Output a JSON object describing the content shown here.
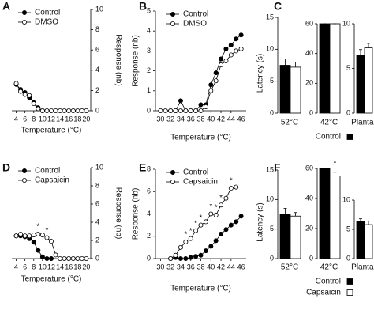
{
  "chart_data": [
    {
      "panel": "A",
      "type": "line",
      "xlabel": "Temperature (°C)",
      "ylabel": "Response (nb)",
      "y_axis_side": "right",
      "legend": "upper left",
      "x": [
        4,
        5,
        6,
        7,
        8,
        9,
        10,
        11,
        12,
        13,
        14,
        15,
        16,
        17,
        18,
        19,
        20
      ],
      "xlim": [
        3,
        21
      ],
      "xticks": [
        4,
        6,
        8,
        10,
        12,
        14,
        16,
        18,
        20
      ],
      "ylim": [
        0,
        10
      ],
      "yticks": [
        0,
        2,
        4,
        6,
        8,
        10
      ],
      "series": [
        {
          "name": "Control",
          "color": "#000000",
          "values": [
            2.6,
            2.1,
            1.8,
            1.3,
            0.8,
            0.3,
            0,
            null,
            null,
            null,
            null,
            null,
            null,
            null,
            null,
            null,
            null
          ]
        },
        {
          "name": "DMSO",
          "color": "#ffffff",
          "values": [
            2.7,
            1.9,
            1.6,
            1.5,
            0.7,
            0.2,
            0,
            0,
            0,
            0,
            0,
            0,
            0,
            0,
            0,
            0,
            0
          ]
        }
      ]
    },
    {
      "panel": "B",
      "type": "line",
      "xlabel": "Temperature (°C)",
      "ylabel": "Response (nb)",
      "y_axis_side": "left",
      "legend": "upper left",
      "x": [
        30,
        31,
        32,
        33,
        34,
        35,
        36,
        37,
        38,
        39,
        40,
        41,
        42,
        43,
        44,
        45,
        46
      ],
      "xlim": [
        29,
        47
      ],
      "xticks": [
        30,
        32,
        34,
        36,
        38,
        40,
        42,
        44,
        46
      ],
      "ylim": [
        0,
        5
      ],
      "yticks": [
        0,
        1,
        2,
        3,
        4,
        5
      ],
      "series": [
        {
          "name": "Control",
          "color": "#000000",
          "values": [
            null,
            null,
            0,
            0,
            0.5,
            0,
            0,
            0,
            0.3,
            0.3,
            1.3,
            1.9,
            2.6,
            3.1,
            3.3,
            3.6,
            3.8
          ]
        },
        {
          "name": "DMSO",
          "color": "#ffffff",
          "values": [
            0,
            0,
            0,
            0,
            0,
            0,
            0,
            0,
            0,
            0.2,
            1.0,
            1.5,
            2.3,
            2.5,
            2.8,
            3.0,
            3.1
          ]
        }
      ]
    },
    {
      "panel": "C",
      "type": "bar",
      "ylabel": "Latency (s)",
      "series": [
        {
          "name": "Control",
          "color": "#000000"
        },
        {
          "color": "#ffffff"
        }
      ],
      "groups": [
        {
          "category": "52°C",
          "ylim": [
            0,
            15
          ],
          "yticks": [
            0,
            5,
            10,
            15
          ],
          "values": [
            7.5,
            7.2
          ],
          "errors": [
            1.0,
            0.8
          ]
        },
        {
          "category": "42°C",
          "ylim": [
            0,
            60
          ],
          "yticks": [
            0,
            20,
            40,
            60
          ],
          "values": [
            60,
            60
          ],
          "errors": [
            0,
            0
          ]
        },
        {
          "category": "Plantar",
          "ylim": [
            0,
            10
          ],
          "yticks": [
            0,
            5,
            10
          ],
          "values": [
            6.5,
            7.3
          ],
          "errors": [
            0.6,
            0.5
          ]
        }
      ]
    },
    {
      "panel": "D",
      "type": "line",
      "xlabel": "Temperature (°C)",
      "ylabel": "Response (nb)",
      "y_axis_side": "right",
      "legend": "upper left",
      "x": [
        4,
        5,
        6,
        7,
        8,
        9,
        10,
        11,
        12,
        13,
        14,
        15,
        16,
        17,
        18,
        19,
        20
      ],
      "xlim": [
        3,
        21
      ],
      "xticks": [
        4,
        6,
        8,
        10,
        12,
        14,
        16,
        18,
        20
      ],
      "ylim": [
        0,
        10
      ],
      "yticks": [
        0,
        2,
        4,
        6,
        8,
        10
      ],
      "series": [
        {
          "name": "Control",
          "color": "#000000",
          "values": [
            2.5,
            2.5,
            2.4,
            2.2,
            1.8,
            0.9,
            0.2,
            0,
            0,
            null,
            null,
            null,
            null,
            null,
            null,
            null,
            null
          ]
        },
        {
          "name": "Capsaicin",
          "color": "#ffffff",
          "values": [
            2.5,
            2.7,
            2.5,
            2.5,
            2.6,
            2.7,
            2.6,
            2.3,
            1.9,
            0.4,
            0,
            0,
            0,
            0,
            0,
            0,
            0
          ]
        }
      ],
      "annotations": [
        {
          "x": 9,
          "label": "*"
        },
        {
          "x": 11,
          "label": "*"
        }
      ]
    },
    {
      "panel": "E",
      "type": "line",
      "xlabel": "Temperature (°C)",
      "ylabel": "Response (nb)",
      "y_axis_side": "left",
      "legend": "upper left",
      "x": [
        30,
        31,
        32,
        33,
        34,
        35,
        36,
        37,
        38,
        39,
        40,
        41,
        42,
        43,
        44,
        45,
        46
      ],
      "xlim": [
        29,
        47
      ],
      "xticks": [
        30,
        32,
        34,
        36,
        38,
        40,
        42,
        44,
        46
      ],
      "ylim": [
        0,
        8
      ],
      "yticks": [
        0,
        2,
        4,
        6,
        8
      ],
      "series": [
        {
          "name": "Control",
          "color": "#000000",
          "values": [
            null,
            null,
            0,
            0.1,
            0,
            0,
            0.1,
            0.2,
            0.3,
            0.7,
            1.1,
            1.6,
            2.2,
            2.6,
            3.0,
            3.3,
            3.8
          ]
        },
        {
          "name": "Capsaicin",
          "color": "#ffffff",
          "values": [
            null,
            null,
            0,
            0.3,
            1.0,
            1.5,
            1.8,
            2.5,
            3.0,
            3.3,
            4.0,
            3.9,
            4.8,
            5.4,
            6.3,
            6.4,
            null
          ]
        }
      ],
      "annotations": [
        {
          "x": 35,
          "label": "*"
        },
        {
          "x": 36,
          "label": "*"
        },
        {
          "x": 37,
          "label": "*"
        },
        {
          "x": 38,
          "label": "*"
        },
        {
          "x": 40,
          "label": "*"
        },
        {
          "x": 41,
          "label": "*"
        },
        {
          "x": 42,
          "label": "*"
        },
        {
          "x": 44,
          "label": "*"
        }
      ]
    },
    {
      "panel": "F",
      "type": "bar",
      "ylabel": "Latency (s)",
      "series": [
        {
          "name": "Control",
          "color": "#000000"
        },
        {
          "name": "Capsaicin",
          "color": "#ffffff"
        }
      ],
      "groups": [
        {
          "category": "52°C",
          "ylim": [
            0,
            15
          ],
          "yticks": [
            0,
            5,
            10,
            15
          ],
          "values": [
            7.5,
            7.2
          ],
          "errors": [
            1.0,
            0.6
          ]
        },
        {
          "category": "42°C",
          "ylim": [
            0,
            60
          ],
          "yticks": [
            0,
            20,
            40,
            60
          ],
          "values": [
            60,
            55
          ],
          "errors": [
            0,
            2.5
          ],
          "annotation": "*"
        },
        {
          "category": "Plantar",
          "ylim": [
            0,
            10
          ],
          "yticks": [
            0,
            5,
            10
          ],
          "values": [
            6.3,
            5.8
          ],
          "errors": [
            0.5,
            0.6
          ]
        }
      ]
    }
  ]
}
